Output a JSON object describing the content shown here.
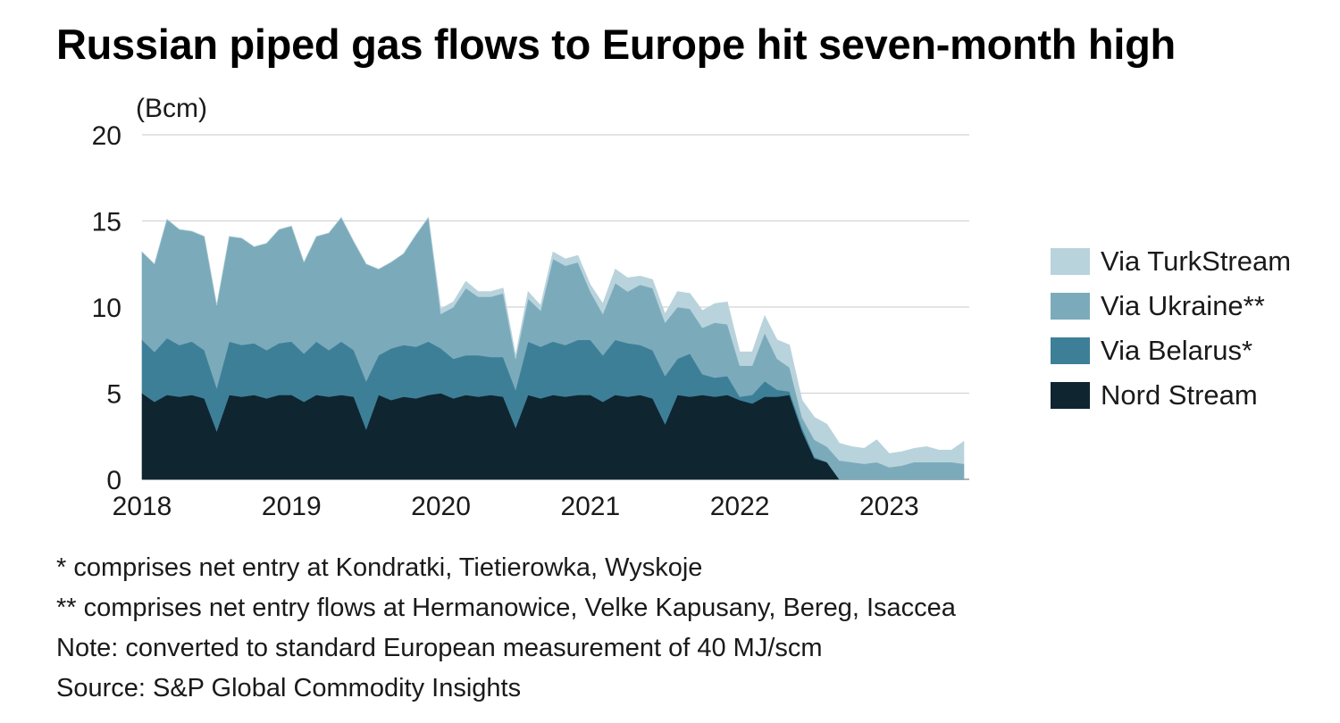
{
  "title": "Russian piped gas flows to Europe hit seven-month high",
  "notes": [
    "* comprises net entry at Kondratki, Tietierowka, Wyskoje",
    "** comprises net entry flows at Hermanowice, Velke Kapusany, Bereg, Isaccea",
    "Note: converted to standard European measurement of 40 MJ/scm",
    "Source: S&P Global Commodity Insights"
  ],
  "chart_data": {
    "type": "area",
    "stacked": true,
    "ylabel": "(Bcm)",
    "xlabel": "",
    "ylim": [
      0,
      20
    ],
    "yticks": [
      0,
      5,
      10,
      15,
      20
    ],
    "xticks": [
      "2018",
      "2019",
      "2020",
      "2021",
      "2022",
      "2023"
    ],
    "grid": true,
    "legend_position": "right",
    "x_start": "2018-01",
    "x_end": "2023-07",
    "series": [
      {
        "name": "Nord Stream",
        "color": "#0f2530",
        "values": [
          5.0,
          4.5,
          4.9,
          4.8,
          4.9,
          4.7,
          2.8,
          4.9,
          4.8,
          4.9,
          4.7,
          4.9,
          4.9,
          4.5,
          4.9,
          4.8,
          4.9,
          4.8,
          2.9,
          4.9,
          4.6,
          4.8,
          4.7,
          4.9,
          5.0,
          4.7,
          4.9,
          4.8,
          4.9,
          4.8,
          3.0,
          4.9,
          4.7,
          4.9,
          4.8,
          4.9,
          4.9,
          4.5,
          4.9,
          4.8,
          4.9,
          4.7,
          3.2,
          4.9,
          4.8,
          4.9,
          4.8,
          4.9,
          4.6,
          4.4,
          4.8,
          4.8,
          4.9,
          2.8,
          1.2,
          1.0,
          0,
          0,
          0,
          0,
          0,
          0,
          0,
          0,
          0,
          0,
          0
        ]
      },
      {
        "name": "Via Belarus*",
        "color": "#3e7f98",
        "values": [
          3.1,
          2.9,
          3.3,
          3.0,
          3.1,
          2.8,
          2.5,
          3.1,
          3.0,
          3.0,
          2.8,
          3.0,
          3.1,
          2.8,
          3.1,
          2.7,
          3.1,
          2.7,
          2.8,
          2.3,
          3.0,
          3.0,
          3.0,
          3.1,
          2.6,
          2.3,
          2.3,
          2.4,
          2.2,
          2.3,
          2.2,
          3.1,
          3.0,
          3.1,
          3.0,
          3.2,
          3.2,
          2.7,
          3.2,
          3.1,
          2.9,
          2.8,
          2.8,
          2.1,
          2.5,
          1.2,
          1.1,
          1.1,
          0.2,
          0.5,
          0.9,
          0.4,
          0.2,
          0.2,
          0.1,
          0,
          0,
          0,
          0,
          0,
          0,
          0,
          0,
          0,
          0,
          0,
          0
        ]
      },
      {
        "name": "Via Ukraine**",
        "color": "#7babbb",
        "values": [
          5.1,
          5.1,
          6.9,
          6.7,
          6.4,
          6.6,
          4.8,
          6.1,
          6.2,
          5.6,
          6.2,
          6.6,
          6.7,
          5.3,
          6.1,
          6.8,
          7.2,
          6.3,
          6.8,
          5.0,
          5.0,
          5.3,
          6.5,
          7.2,
          2.0,
          3.0,
          3.9,
          3.4,
          3.5,
          3.7,
          1.8,
          2.5,
          2.1,
          4.8,
          4.6,
          4.5,
          2.8,
          2.4,
          3.3,
          3.0,
          3.5,
          3.6,
          3.1,
          3.0,
          2.6,
          2.7,
          3.2,
          3.0,
          1.8,
          1.7,
          2.8,
          1.8,
          1.4,
          0.6,
          1.0,
          0.9,
          1.1,
          1.0,
          0.9,
          1.0,
          0.7,
          0.8,
          1.0,
          1.0,
          1.0,
          1.0,
          0.9
        ]
      },
      {
        "name": "Via TurkStream",
        "color": "#b9d3dc",
        "values": [
          0,
          0,
          0,
          0,
          0,
          0,
          0,
          0,
          0,
          0,
          0,
          0,
          0,
          0,
          0,
          0,
          0,
          0,
          0,
          0,
          0,
          0,
          0,
          0,
          0.3,
          0.3,
          0.4,
          0.3,
          0.3,
          0.3,
          0.2,
          0.4,
          0.3,
          0.4,
          0.4,
          0.4,
          0.4,
          0.6,
          0.8,
          0.8,
          0.5,
          0.5,
          0.5,
          0.9,
          0.9,
          1.0,
          1.1,
          1.3,
          0.8,
          0.8,
          1.0,
          1.1,
          1.3,
          1.0,
          1.3,
          1.3,
          1.0,
          0.9,
          0.9,
          1.3,
          0.8,
          0.8,
          0.8,
          0.9,
          0.7,
          0.7,
          1.3
        ]
      }
    ]
  }
}
